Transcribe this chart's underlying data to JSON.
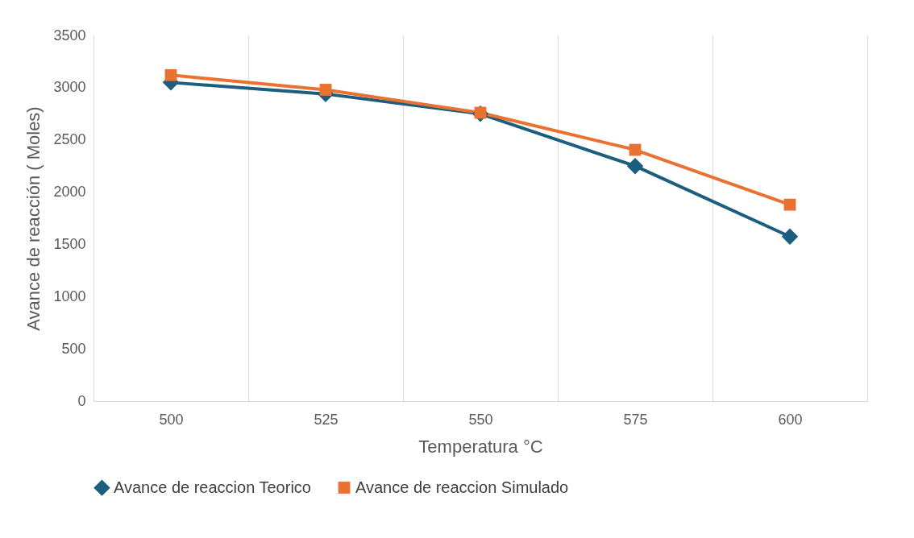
{
  "chart_data": {
    "type": "line",
    "xlabel": "Temperatura °C",
    "ylabel": "Avance de reacción ( Moles)",
    "categories": [
      "500",
      "525",
      "550",
      "575",
      "600"
    ],
    "series": [
      {
        "name": "Avance de reaccion Teorico",
        "color": "#1b5e7e",
        "marker": "diamond",
        "values": [
          3050,
          2940,
          2750,
          2250,
          1575
        ]
      },
      {
        "name": "Avance de reaccion Simulado",
        "color": "#e97132",
        "marker": "square",
        "values": [
          3120,
          2980,
          2760,
          2405,
          1880
        ]
      }
    ],
    "ylim": [
      0,
      3500
    ],
    "yticks": [
      0,
      500,
      1000,
      1500,
      2000,
      2500,
      3000,
      3500
    ],
    "grid": "x",
    "legend": "bottom"
  }
}
